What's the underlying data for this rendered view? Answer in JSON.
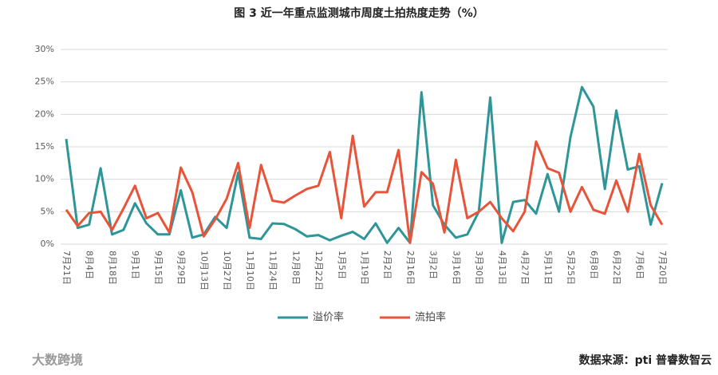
{
  "chart_data": {
    "type": "line",
    "title": "图 3 近一年重点监测城市周度土拍热度走势（%）",
    "categories": [
      "7月21日",
      null,
      "8月4日",
      null,
      "8月18日",
      null,
      "9月1日",
      null,
      "9月15日",
      null,
      "9月29日",
      null,
      "10月13日",
      null,
      "10月27日",
      null,
      "11月10日",
      null,
      "11月24日",
      null,
      "12月8日",
      null,
      "12月22日",
      null,
      "1月5日",
      null,
      "1月19日",
      null,
      "2月2日",
      null,
      "2月16日",
      null,
      "3月2日",
      null,
      "3月16日",
      null,
      "3月30日",
      null,
      "4月13日",
      null,
      "4月27日",
      null,
      "5月11日",
      null,
      "5月25日",
      null,
      "6月8日",
      null,
      "6月22日",
      null,
      "7月6日",
      null,
      "7月20日"
    ],
    "series": [
      {
        "name": "溢价率",
        "color": "#2e9598",
        "values": [
          16.2,
          2.5,
          3.0,
          11.7,
          1.5,
          2.2,
          6.3,
          3.2,
          1.5,
          1.5,
          8.3,
          1.0,
          1.5,
          4.2,
          2.5,
          11.0,
          1.0,
          0.8,
          3.2,
          3.1,
          2.3,
          1.2,
          1.4,
          0.6,
          1.3,
          1.9,
          0.8,
          3.2,
          0.2,
          2.5,
          0.2,
          23.4,
          6.0,
          3.0,
          1.0,
          1.5,
          5.0,
          22.6,
          0.2,
          6.5,
          6.8,
          4.7,
          10.8,
          5.0,
          16.5,
          24.2,
          21.2,
          8.5,
          20.6,
          11.5,
          12.0,
          3.0,
          9.4
        ]
      },
      {
        "name": "流拍率",
        "color": "#e8543a",
        "values": [
          5.3,
          2.8,
          4.8,
          5.0,
          2.2,
          5.5,
          9.0,
          4.0,
          4.8,
          1.8,
          11.8,
          8.0,
          1.2,
          3.8,
          7.0,
          12.5,
          2.5,
          12.2,
          6.7,
          6.4,
          7.5,
          8.5,
          9.0,
          14.2,
          4.0,
          16.7,
          5.8,
          8.0,
          8.0,
          14.5,
          0.2,
          11.1,
          9.3,
          1.8,
          13.0,
          4.0,
          5.0,
          6.5,
          4.0,
          2.0,
          5.0,
          15.8,
          11.7,
          11.0,
          5.0,
          8.8,
          5.3,
          4.7,
          9.8,
          5.0,
          13.9,
          6.0,
          3.0
        ]
      }
    ],
    "ylim": [
      0,
      30
    ],
    "yticks": [
      {
        "value": 0,
        "label": "0%"
      },
      {
        "value": 5,
        "label": "5%"
      },
      {
        "value": 10,
        "label": "10%"
      },
      {
        "value": 15,
        "label": "15%"
      },
      {
        "value": 20,
        "label": "20%"
      },
      {
        "value": 25,
        "label": "25%"
      },
      {
        "value": 30,
        "label": "30%"
      }
    ],
    "grid": true,
    "legend": "bottom",
    "source": "数据来源：pti 普睿数智云",
    "watermark": "大数跨境"
  }
}
